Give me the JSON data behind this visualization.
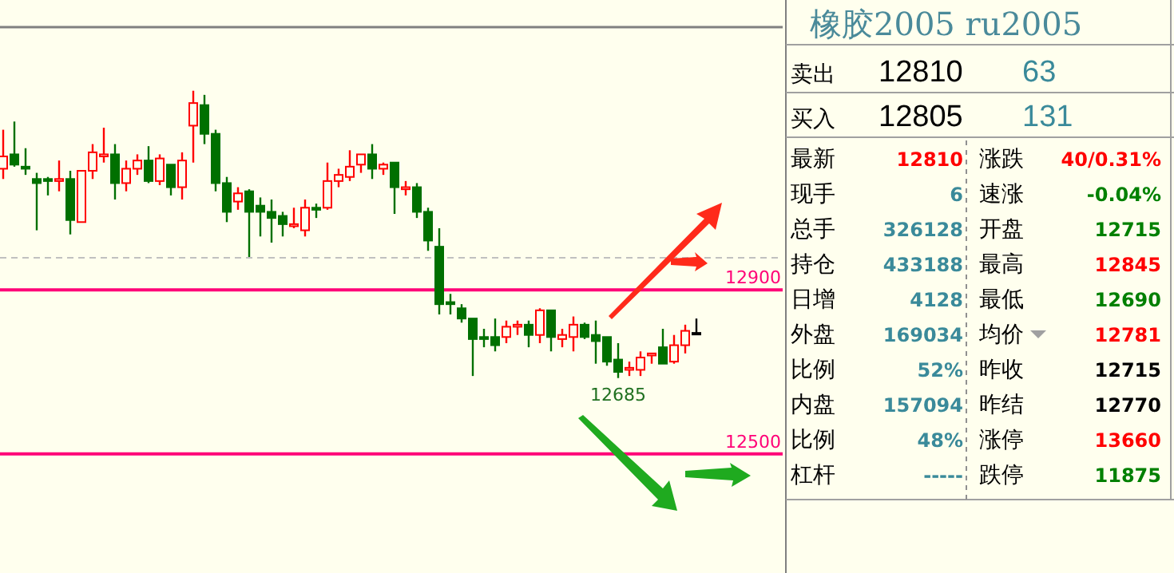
{
  "chart_data": [
    {
      "type": "candlestick",
      "tick_labels": false,
      "categories": [
        null,
        null,
        null,
        null,
        null,
        null,
        null,
        null,
        null,
        null,
        null,
        null,
        null,
        null,
        null,
        null,
        null,
        null,
        null,
        null,
        null,
        null,
        null,
        null,
        null,
        null,
        null,
        null,
        null,
        null,
        null,
        null,
        null,
        null,
        null,
        null,
        null,
        null,
        null,
        null,
        null,
        null,
        null,
        null,
        null,
        null,
        null,
        null,
        null,
        null,
        null,
        null,
        null,
        null,
        null,
        null,
        null,
        null,
        null,
        null,
        null,
        null,
        null
      ],
      "ohlc": [
        [
          13195,
          13290,
          13170,
          13225
        ],
        [
          13230,
          13310,
          13200,
          13205
        ],
        [
          13200,
          13245,
          13180,
          13195
        ],
        [
          13170,
          13185,
          13045,
          13160
        ],
        [
          13170,
          13175,
          13130,
          13165
        ],
        [
          13165,
          13215,
          13140,
          13170
        ],
        [
          13170,
          13190,
          13035,
          13070
        ],
        [
          13065,
          13190,
          13065,
          13190
        ],
        [
          13190,
          13255,
          13170,
          13235
        ],
        [
          13225,
          13295,
          13210,
          13230
        ],
        [
          13230,
          13255,
          13120,
          13160
        ],
        [
          13160,
          13215,
          13140,
          13195
        ],
        [
          13195,
          13230,
          13180,
          13215
        ],
        [
          13215,
          13250,
          13160,
          13165
        ],
        [
          13165,
          13230,
          13155,
          13220
        ],
        [
          13205,
          13205,
          13130,
          13150
        ],
        [
          13150,
          13235,
          13120,
          13215
        ],
        [
          13300,
          13385,
          13210,
          13355
        ],
        [
          13350,
          13375,
          13255,
          13280
        ],
        [
          13280,
          13290,
          13140,
          13160
        ],
        [
          13160,
          13175,
          13065,
          13090
        ],
        [
          13115,
          13150,
          13095,
          13135
        ],
        [
          13140,
          13145,
          12980,
          13090
        ],
        [
          13105,
          13125,
          13030,
          13090
        ],
        [
          13090,
          13120,
          13015,
          13075
        ],
        [
          13080,
          13090,
          13030,
          13060
        ],
        [
          13055,
          13100,
          13050,
          13060
        ],
        [
          13045,
          13120,
          13030,
          13100
        ],
        [
          13100,
          13110,
          13075,
          13095
        ],
        [
          13100,
          13210,
          13095,
          13165
        ],
        [
          13165,
          13195,
          13150,
          13180
        ],
        [
          13175,
          13240,
          13165,
          13200
        ],
        [
          13205,
          13230,
          13185,
          13230
        ],
        [
          13230,
          13255,
          13170,
          13195
        ],
        [
          13195,
          13210,
          13180,
          13205
        ],
        [
          13210,
          13210,
          13085,
          13150
        ],
        [
          13145,
          13165,
          13130,
          13150
        ],
        [
          13150,
          13160,
          13075,
          13090
        ],
        [
          13090,
          13100,
          12995,
          13020
        ],
        [
          13005,
          13050,
          12840,
          12865
        ],
        [
          12870,
          12890,
          12840,
          12865
        ],
        [
          12855,
          12865,
          12820,
          12830
        ],
        [
          12830,
          12830,
          12690,
          12780
        ],
        [
          12785,
          12805,
          12760,
          12780
        ],
        [
          12785,
          12830,
          12750,
          12765
        ],
        [
          12785,
          12825,
          12770,
          12810
        ],
        [
          12810,
          12825,
          12790,
          12815
        ],
        [
          12815,
          12825,
          12760,
          12790
        ],
        [
          12790,
          12855,
          12770,
          12850
        ],
        [
          12850,
          12850,
          12750,
          12785
        ],
        [
          12780,
          12805,
          12760,
          12790
        ],
        [
          12785,
          12835,
          12750,
          12815
        ],
        [
          12815,
          12820,
          12780,
          12785
        ],
        [
          12790,
          12825,
          12720,
          12775
        ],
        [
          12785,
          12785,
          12715,
          12725
        ],
        [
          12730,
          12770,
          12685,
          12700
        ],
        [
          12705,
          12725,
          12690,
          12710
        ],
        [
          12705,
          12750,
          12690,
          12735
        ],
        [
          12740,
          12745,
          12720,
          12745
        ],
        [
          12760,
          12805,
          12720,
          12720
        ],
        [
          12725,
          12790,
          12720,
          12765
        ],
        [
          12765,
          12815,
          12745,
          12800
        ],
        [
          12795,
          12830,
          12790,
          12795
        ]
      ],
      "colors": [
        "#ff0000",
        "#007000",
        "#007000",
        "#007000",
        "#007000",
        "#ff0000",
        "#007000",
        "#ff0000",
        "#ff0000",
        "#ff0000",
        "#007000",
        "#ff0000",
        "#ff0000",
        "#007000",
        "#ff0000",
        "#007000",
        "#ff0000",
        "#ff0000",
        "#007000",
        "#007000",
        "#007000",
        "#ff0000",
        "#007000",
        "#007000",
        "#007000",
        "#007000",
        "#ff0000",
        "#ff0000",
        "#007000",
        "#ff0000",
        "#ff0000",
        "#ff0000",
        "#ff0000",
        "#007000",
        "#ff0000",
        "#007000",
        "#ff0000",
        "#007000",
        "#007000",
        "#007000",
        "#007000",
        "#007000",
        "#007000",
        "#007000",
        "#007000",
        "#ff0000",
        "#ff0000",
        "#007000",
        "#ff0000",
        "#007000",
        "#ff0000",
        "#ff0000",
        "#007000",
        "#007000",
        "#007000",
        "#007000",
        "#ff0000",
        "#ff0000",
        "#ff0000",
        "#007000",
        "#ff0000",
        "#ff0000",
        "#000000"
      ],
      "ylim": [
        12210,
        13540
      ],
      "ref_lines": [
        {
          "axis": "y",
          "value": 12900,
          "label": "12900",
          "color": "#ff0077",
          "line_style": "solid"
        },
        {
          "axis": "y",
          "value": 12500,
          "label": "12500",
          "color": "#ff0077",
          "line_style": "solid"
        },
        {
          "axis": "y",
          "value": 12978,
          "label": null,
          "color": "#c0c0c0",
          "line_style": "dashed"
        }
      ],
      "annotations": [
        {
          "text": "12685",
          "y": 12685
        }
      ]
    },
    {
      "type": "other",
      "title": "橡胶2005 ru2005",
      "annotations": [
        "卖出",
        "12810",
        "63",
        "买入",
        "12805",
        "131",
        "最新",
        "12810",
        "涨跌",
        "40/0.31%",
        "现手",
        "6",
        "速涨",
        "-0.04%",
        "总手",
        "326128",
        "开盘",
        "12715",
        "持仓",
        "433188",
        "最高",
        "12845",
        "日增",
        "4128",
        "最低",
        "12690",
        "外盘",
        "169034",
        "均价",
        "12781",
        "比例",
        "52%",
        "昨收",
        "12715",
        "内盘",
        "157094",
        "昨结",
        "12770",
        "比例",
        "48%",
        "涨停",
        "13660",
        "杠杆",
        "-----",
        "跌停",
        "11875"
      ],
      "colors": [
        "#000000",
        "#000000",
        "#3a8a9a",
        "#000000",
        "#000000",
        "#3a8a9a",
        "#000000",
        "#ff0000",
        "#000000",
        "#ff0000",
        "#000000",
        "#3a8a9a",
        "#000000",
        "#008000",
        "#000000",
        "#3a8a9a",
        "#000000",
        "#008000",
        "#000000",
        "#3a8a9a",
        "#000000",
        "#ff0000",
        "#000000",
        "#3a8a9a",
        "#000000",
        "#008000",
        "#000000",
        "#3a8a9a",
        "#000000",
        "#ff0000",
        "#000000",
        "#3a8a9a",
        "#000000",
        "#000000",
        "#000000",
        "#3a8a9a",
        "#000000",
        "#000000",
        "#000000",
        "#3a8a9a",
        "#000000",
        "#ff0000",
        "#000000",
        "#3a8a9a",
        "#000000",
        "#008000"
      ]
    }
  ]
}
